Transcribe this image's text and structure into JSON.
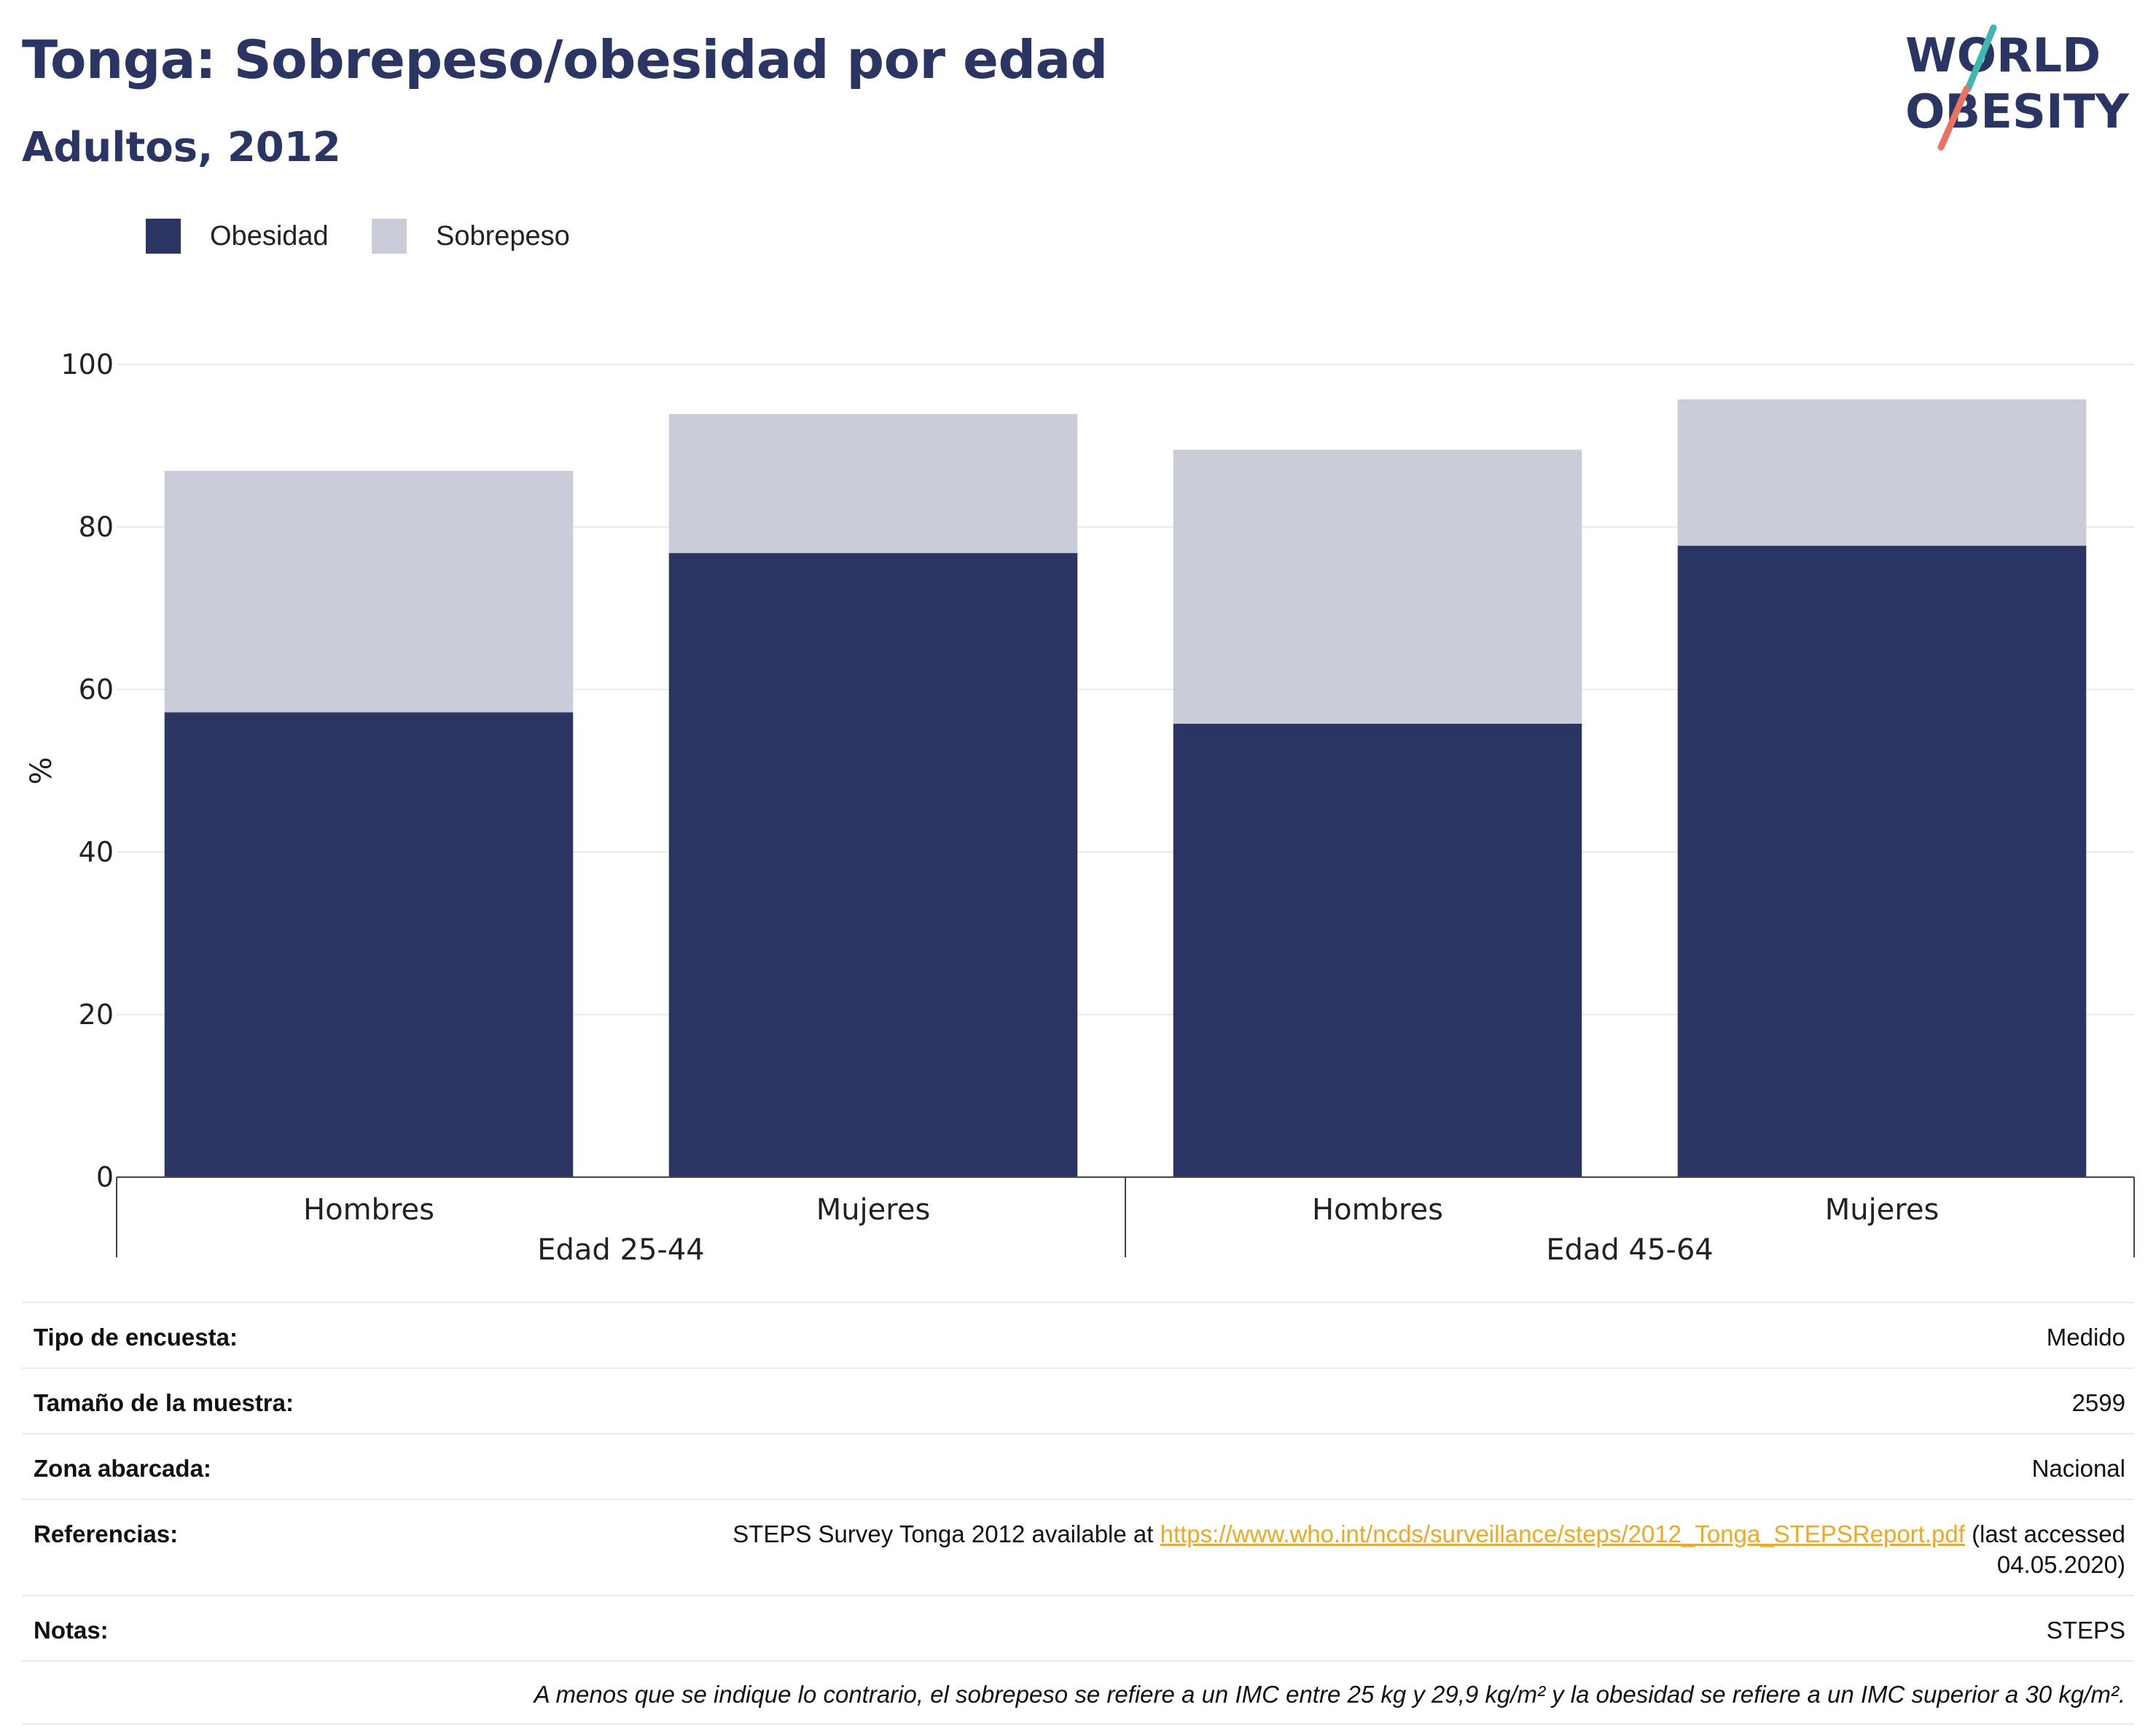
{
  "title": "Tonga: Sobrepeso/obesidad por edad",
  "subtitle": "Adultos, 2012",
  "logo": {
    "line1": "WORLD",
    "line2": "OBESITY"
  },
  "colors": {
    "obesidad": "#2b3563",
    "sobrepeso": "#cacdd9",
    "accent_teal": "#3fb7b0",
    "accent_coral": "#e8735e",
    "link": "#f2a81d"
  },
  "legend": [
    {
      "label": "Obesidad",
      "color": "#2b3563"
    },
    {
      "label": "Sobrepeso",
      "color": "#cacdd9"
    }
  ],
  "chart_data": {
    "type": "bar",
    "stacked": true,
    "categories": [
      {
        "label": "Hombres",
        "group": "Edad 25-44"
      },
      {
        "label": "Mujeres",
        "group": "Edad 25-44"
      },
      {
        "label": "Hombres",
        "group": "Edad 45-64"
      },
      {
        "label": "Mujeres",
        "group": "Edad 45-64"
      }
    ],
    "groups": [
      "Edad 25-44",
      "Edad 45-64"
    ],
    "series": [
      {
        "name": "Obesidad",
        "values": [
          57.2,
          76.8,
          55.8,
          77.7
        ]
      },
      {
        "name": "Sobrepeso",
        "values": [
          29.7,
          17.1,
          33.7,
          18.0
        ]
      }
    ],
    "ylabel": "%",
    "ylim": [
      0,
      100
    ],
    "yticks": [
      0,
      20,
      40,
      60,
      80,
      100
    ],
    "grid": true
  },
  "info": {
    "rows": [
      {
        "key": "Tipo de encuesta:",
        "value": "Medido"
      },
      {
        "key": "Tamaño de la muestra:",
        "value": "2599"
      },
      {
        "key": "Zona abarcada:",
        "value": "Nacional"
      }
    ],
    "references": {
      "key": "Referencias:",
      "prefix": "STEPS Survey Tonga 2012 available at",
      "link": "https://www.who.int/ncds/surveillance/steps/2012_Tonga_STEPSReport.pdf",
      "suffix_line1": "(last accessed",
      "suffix_line2": "04.05.2020)"
    },
    "notes": {
      "key": "Notas:",
      "value": "STEPS"
    },
    "footnote": "A menos que se indique lo contrario, el sobrepeso se refiere a un IMC entre 25 kg y 29,9 kg/m² y la obesidad se refiere a un IMC superior a 30 kg/m²."
  }
}
